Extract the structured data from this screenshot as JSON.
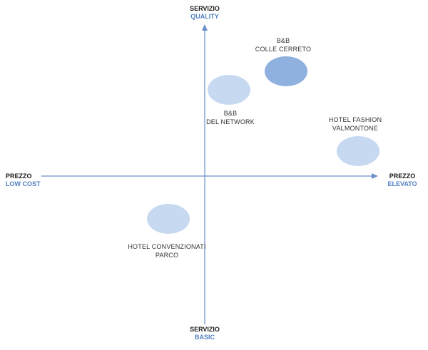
{
  "axes": {
    "top": {
      "main": "SERVIZIO",
      "sub": "QUALITY"
    },
    "bottom": {
      "main": "SERVIZIO",
      "sub": "BASIC"
    },
    "left": {
      "main": "PREZZO",
      "sub": "LOW COST"
    },
    "right": {
      "main": "PREZZO",
      "sub": "ELEVATO"
    }
  },
  "items": [
    {
      "line1": "B&B",
      "line2": "COLLE CERRETO",
      "color": "#8eb1df"
    },
    {
      "line1": "B&B",
      "line2": "DEL NETWORK",
      "color": "#c6d9f1"
    },
    {
      "line1": "HOTEL FASHION",
      "line2": "VALMONTONE",
      "color": "#c6d9f1"
    },
    {
      "line1": "HOTEL CONVENZIONATI",
      "line2": "PARCO",
      "color": "#c6d9f1"
    }
  ]
}
